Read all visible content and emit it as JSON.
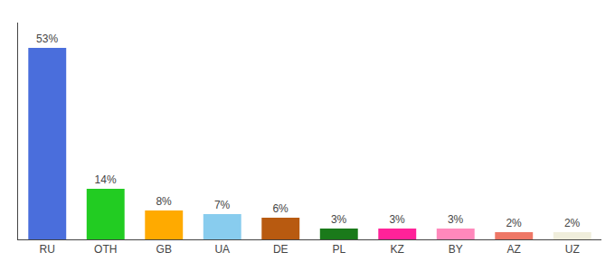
{
  "chart_data": {
    "type": "bar",
    "categories": [
      "RU",
      "OTH",
      "GB",
      "UA",
      "DE",
      "PL",
      "KZ",
      "BY",
      "AZ",
      "UZ"
    ],
    "values": [
      53,
      14,
      8,
      7,
      6,
      3,
      3,
      3,
      2,
      2
    ],
    "value_labels": [
      "53%",
      "14%",
      "8%",
      "7%",
      "6%",
      "3%",
      "3%",
      "3%",
      "2%",
      "2%"
    ],
    "colors": [
      "#4a6edc",
      "#22cc22",
      "#ffaa00",
      "#88ccee",
      "#b85a10",
      "#1a7a1a",
      "#ff2299",
      "#ff88bb",
      "#ee7766",
      "#f0eedc"
    ],
    "ylim": [
      0,
      60
    ],
    "grid": false,
    "data_labels": true,
    "tick_labels": "x"
  }
}
